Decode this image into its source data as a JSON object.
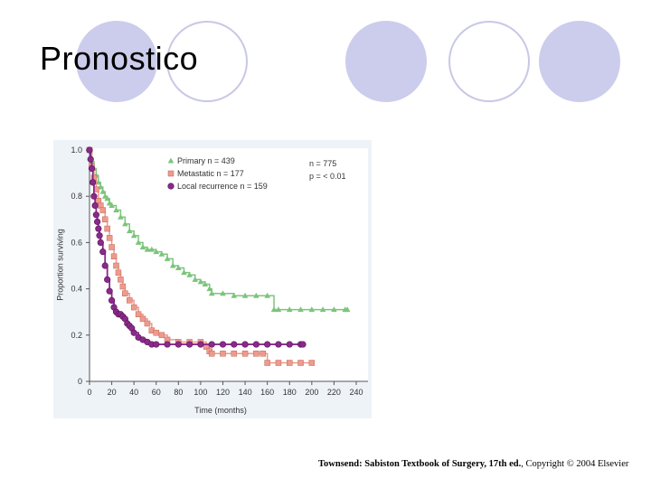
{
  "slide": {
    "title": "Pronostico",
    "citation": {
      "reference": "Townsend: Sabiston Textbook of Surgery, 17th ed.",
      "copyright": ", Copyright © 2004 Elsevier"
    },
    "colors": {
      "circle_fill": "#ccccec",
      "circle_outline": "#c8c8e6",
      "panel_bg": "#eef3f8",
      "plot_bg": "#ffffff"
    }
  },
  "chart_data": {
    "type": "line",
    "subtype": "kaplan-meier-step",
    "xlabel": "Time (months)",
    "ylabel": "Proportion surviving",
    "xlim": [
      0,
      240
    ],
    "ylim": [
      0,
      1.0
    ],
    "xticks": [
      0,
      20,
      40,
      60,
      80,
      100,
      120,
      140,
      160,
      180,
      200,
      220,
      240
    ],
    "yticks": [
      0,
      0.2,
      0.4,
      0.6,
      0.8,
      1.0
    ],
    "ytick_labels": [
      "0",
      "0.2",
      "0.4",
      "0.6",
      "0.8",
      "1.0"
    ],
    "grid": false,
    "legend_position": "top-center",
    "annotations": [
      "n = 775",
      "p = < 0.01"
    ],
    "series": [
      {
        "name": "Primary n = 439",
        "color": "#7cc47c",
        "marker": "triangle",
        "x": [
          0,
          2,
          4,
          6,
          8,
          10,
          12,
          14,
          16,
          18,
          20,
          24,
          28,
          32,
          36,
          40,
          44,
          48,
          52,
          56,
          60,
          65,
          70,
          75,
          80,
          85,
          90,
          95,
          100,
          104,
          108,
          110,
          120,
          130,
          140,
          150,
          160,
          166,
          170,
          180,
          190,
          200,
          210,
          220,
          230,
          232
        ],
        "y": [
          1.0,
          0.95,
          0.92,
          0.89,
          0.86,
          0.84,
          0.82,
          0.8,
          0.79,
          0.77,
          0.76,
          0.74,
          0.71,
          0.68,
          0.65,
          0.63,
          0.6,
          0.58,
          0.57,
          0.57,
          0.56,
          0.55,
          0.53,
          0.5,
          0.49,
          0.47,
          0.46,
          0.44,
          0.43,
          0.42,
          0.4,
          0.38,
          0.38,
          0.37,
          0.37,
          0.37,
          0.37,
          0.31,
          0.31,
          0.31,
          0.31,
          0.31,
          0.31,
          0.31,
          0.31,
          0.31
        ]
      },
      {
        "name": "Metastatic n = 177",
        "color": "#ee9a8c",
        "marker": "square",
        "x": [
          0,
          2,
          4,
          6,
          8,
          10,
          12,
          14,
          16,
          18,
          20,
          22,
          24,
          26,
          28,
          30,
          32,
          36,
          40,
          44,
          48,
          52,
          56,
          60,
          65,
          70,
          80,
          90,
          100,
          105,
          108,
          110,
          120,
          130,
          140,
          150,
          156,
          160,
          170,
          180,
          190,
          200
        ],
        "y": [
          1.0,
          0.93,
          0.88,
          0.83,
          0.78,
          0.76,
          0.74,
          0.7,
          0.66,
          0.62,
          0.58,
          0.54,
          0.5,
          0.47,
          0.44,
          0.41,
          0.38,
          0.35,
          0.32,
          0.29,
          0.27,
          0.25,
          0.22,
          0.21,
          0.2,
          0.18,
          0.17,
          0.17,
          0.17,
          0.15,
          0.13,
          0.12,
          0.12,
          0.12,
          0.12,
          0.12,
          0.12,
          0.08,
          0.08,
          0.08,
          0.08,
          0.08
        ]
      },
      {
        "name": "Local recurrence n = 159",
        "color": "#8a2a8a",
        "marker": "circle",
        "x": [
          0,
          1,
          2,
          3,
          4,
          5,
          6,
          7,
          8,
          9,
          10,
          12,
          14,
          16,
          18,
          20,
          22,
          24,
          26,
          28,
          30,
          32,
          34,
          36,
          38,
          40,
          44,
          48,
          52,
          56,
          60,
          70,
          80,
          90,
          100,
          110,
          120,
          130,
          140,
          150,
          160,
          170,
          180,
          190,
          192
        ],
        "y": [
          1.0,
          0.96,
          0.92,
          0.86,
          0.8,
          0.76,
          0.72,
          0.69,
          0.66,
          0.63,
          0.6,
          0.56,
          0.5,
          0.44,
          0.39,
          0.35,
          0.32,
          0.3,
          0.29,
          0.29,
          0.28,
          0.27,
          0.25,
          0.24,
          0.23,
          0.21,
          0.19,
          0.18,
          0.17,
          0.16,
          0.16,
          0.16,
          0.16,
          0.16,
          0.16,
          0.16,
          0.16,
          0.16,
          0.16,
          0.16,
          0.16,
          0.16,
          0.16,
          0.16,
          0.16
        ]
      }
    ]
  }
}
